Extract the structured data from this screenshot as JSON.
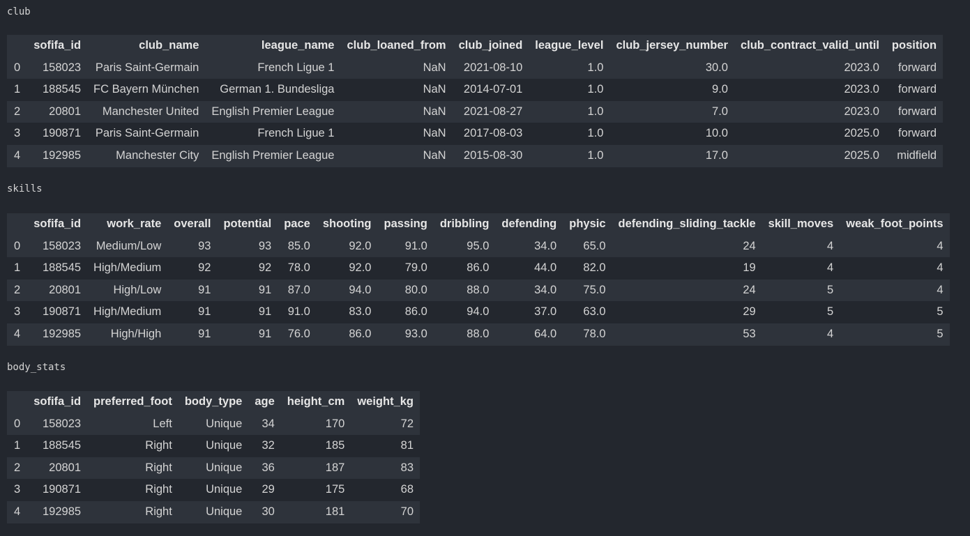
{
  "club": {
    "title": "club",
    "columns": [
      "sofifa_id",
      "club_name",
      "league_name",
      "club_loaned_from",
      "club_joined",
      "league_level",
      "club_jersey_number",
      "club_contract_valid_until",
      "position"
    ],
    "rows": [
      {
        "index": "0",
        "cells": [
          "158023",
          "Paris Saint-Germain",
          "French Ligue 1",
          "NaN",
          "2021-08-10",
          "1.0",
          "30.0",
          "2023.0",
          "forward"
        ]
      },
      {
        "index": "1",
        "cells": [
          "188545",
          "FC Bayern München",
          "German 1. Bundesliga",
          "NaN",
          "2014-07-01",
          "1.0",
          "9.0",
          "2023.0",
          "forward"
        ]
      },
      {
        "index": "2",
        "cells": [
          "20801",
          "Manchester United",
          "English Premier League",
          "NaN",
          "2021-08-27",
          "1.0",
          "7.0",
          "2023.0",
          "forward"
        ]
      },
      {
        "index": "3",
        "cells": [
          "190871",
          "Paris Saint-Germain",
          "French Ligue 1",
          "NaN",
          "2017-08-03",
          "1.0",
          "10.0",
          "2025.0",
          "forward"
        ]
      },
      {
        "index": "4",
        "cells": [
          "192985",
          "Manchester City",
          "English Premier League",
          "NaN",
          "2015-08-30",
          "1.0",
          "17.0",
          "2025.0",
          "midfield"
        ]
      }
    ]
  },
  "skills": {
    "title": "skills",
    "columns": [
      "sofifa_id",
      "work_rate",
      "overall",
      "potential",
      "pace",
      "shooting",
      "passing",
      "dribbling",
      "defending",
      "physic",
      "defending_sliding_tackle",
      "skill_moves",
      "weak_foot_points"
    ],
    "rows": [
      {
        "index": "0",
        "cells": [
          "158023",
          "Medium/Low",
          "93",
          "93",
          "85.0",
          "92.0",
          "91.0",
          "95.0",
          "34.0",
          "65.0",
          "24",
          "4",
          "4"
        ]
      },
      {
        "index": "1",
        "cells": [
          "188545",
          "High/Medium",
          "92",
          "92",
          "78.0",
          "92.0",
          "79.0",
          "86.0",
          "44.0",
          "82.0",
          "19",
          "4",
          "4"
        ]
      },
      {
        "index": "2",
        "cells": [
          "20801",
          "High/Low",
          "91",
          "91",
          "87.0",
          "94.0",
          "80.0",
          "88.0",
          "34.0",
          "75.0",
          "24",
          "5",
          "4"
        ]
      },
      {
        "index": "3",
        "cells": [
          "190871",
          "High/Medium",
          "91",
          "91",
          "91.0",
          "83.0",
          "86.0",
          "94.0",
          "37.0",
          "63.0",
          "29",
          "5",
          "5"
        ]
      },
      {
        "index": "4",
        "cells": [
          "192985",
          "High/High",
          "91",
          "91",
          "76.0",
          "86.0",
          "93.0",
          "88.0",
          "64.0",
          "78.0",
          "53",
          "4",
          "5"
        ]
      }
    ]
  },
  "body_stats": {
    "title": "body_stats",
    "columns": [
      "sofifa_id",
      "preferred_foot",
      "body_type",
      "age",
      "height_cm",
      "weight_kg"
    ],
    "rows": [
      {
        "index": "0",
        "cells": [
          "158023",
          "Left",
          "Unique",
          "34",
          "170",
          "72"
        ]
      },
      {
        "index": "1",
        "cells": [
          "188545",
          "Right",
          "Unique",
          "32",
          "185",
          "81"
        ]
      },
      {
        "index": "2",
        "cells": [
          "20801",
          "Right",
          "Unique",
          "36",
          "187",
          "83"
        ]
      },
      {
        "index": "3",
        "cells": [
          "190871",
          "Right",
          "Unique",
          "29",
          "175",
          "68"
        ]
      },
      {
        "index": "4",
        "cells": [
          "192985",
          "Right",
          "Unique",
          "30",
          "181",
          "70"
        ]
      }
    ]
  }
}
